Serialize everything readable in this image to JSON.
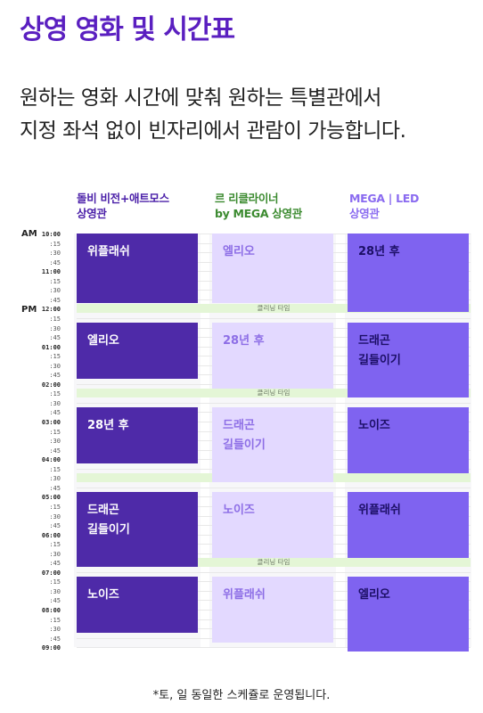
{
  "title": "상영 영화 및 시간표",
  "intro": {
    "line1": "원하는 영화 시간에 맞춰 원하는 특별관에서",
    "line2": "지정 좌석 없이 빈자리에서 관람이 가능합니다."
  },
  "columns": [
    {
      "line1": "돌비 비전+애트모스",
      "line2": "상영관"
    },
    {
      "line1": "르 리클라이너",
      "line2": "by MEGA 상영관"
    },
    {
      "line1": "MEGA | LED",
      "line2": "상영관"
    }
  ],
  "periods": {
    "am": "AM",
    "pm": "PM"
  },
  "ticks": [
    "10:00",
    ":15",
    ":30",
    ":45",
    "11:00",
    ":15",
    ":30",
    ":45",
    "12:00",
    ":15",
    ":30",
    ":45",
    "01:00",
    ":15",
    ":30",
    ":45",
    "02:00",
    ":15",
    ":30",
    ":45",
    "03:00",
    ":15",
    ":30",
    ":45",
    "04:00",
    ":15",
    ":30",
    ":45",
    "05:00",
    ":15",
    ":30",
    ":45",
    "06:00",
    ":15",
    ":30",
    ":45",
    "07:00",
    ":15",
    ":30",
    ":45",
    "08:00",
    ":15",
    ":30",
    ":45",
    "09:00"
  ],
  "cleaning_label": "클리닝 타임",
  "schedule": {
    "col1": [
      "위플래쉬",
      "엘리오",
      "28년 후",
      "드래곤 길들이기",
      "노이즈"
    ],
    "col2": [
      "엘리오",
      "28년 후",
      "드래곤 길들이기",
      "노이즈",
      "위플래쉬"
    ],
    "col3": [
      "28년 후",
      "드래곤 길들이기",
      "노이즈",
      "위플래쉬",
      "엘리오"
    ]
  },
  "colors": {
    "col1": "#4e2aa8",
    "col2": "#e3d9ff",
    "col3": "#7f63f0",
    "cleaning": "#e4f6d6",
    "title": "#5a1fc0"
  },
  "footnote": "*토, 일 동일한 스케쥴로 운영됩니다."
}
